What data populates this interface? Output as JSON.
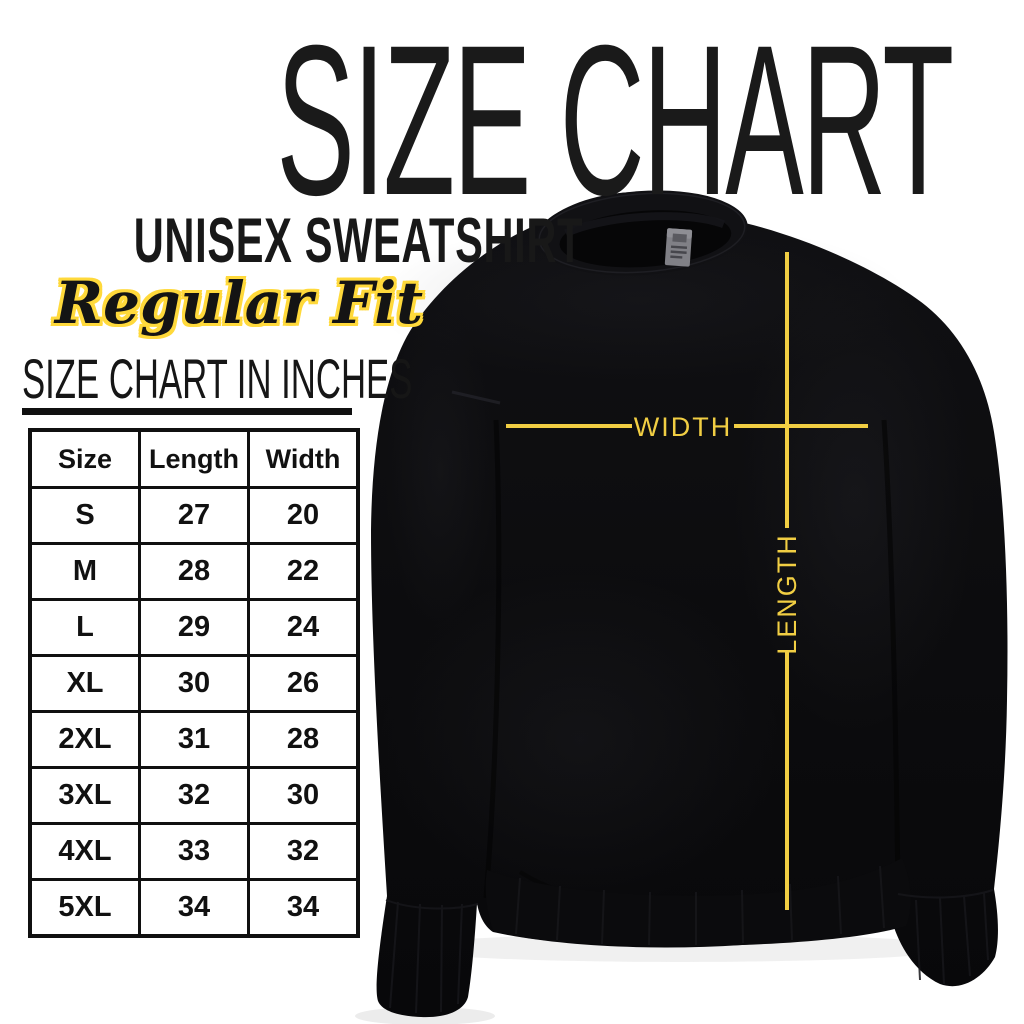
{
  "title": "SIZE CHART",
  "product": {
    "name": "UNISEX SWEATSHIRT",
    "fit": "Regular Fit"
  },
  "chart_data": {
    "type": "table",
    "title": "SIZE CHART IN INCHES",
    "units": "inches",
    "columns": [
      "Size",
      "Length",
      "Width"
    ],
    "rows": [
      [
        "S",
        "27",
        "20"
      ],
      [
        "M",
        "28",
        "22"
      ],
      [
        "L",
        "29",
        "24"
      ],
      [
        "XL",
        "30",
        "26"
      ],
      [
        "2XL",
        "31",
        "28"
      ],
      [
        "3XL",
        "32",
        "30"
      ],
      [
        "4XL",
        "33",
        "32"
      ],
      [
        "5XL",
        "34",
        "34"
      ]
    ]
  },
  "measurements": {
    "width_label": "WIDTH",
    "length_label": "LENGTH"
  },
  "colors": {
    "accent_yellow": "#F1CE43",
    "outline_yellow": "#FFD93B",
    "ink_black": "#141414",
    "garment_black": "#0C0C0E",
    "background": "#FFFFFF"
  }
}
